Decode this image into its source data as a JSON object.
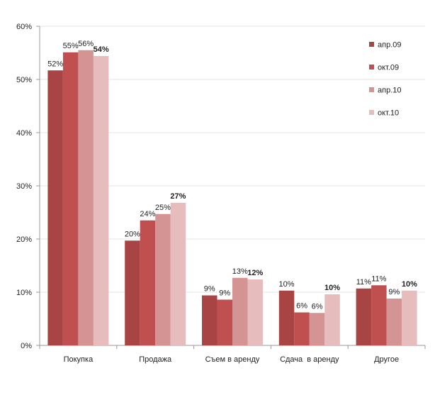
{
  "chart_data": {
    "type": "bar",
    "title": "",
    "xlabel": "",
    "ylabel": "",
    "ylim": [
      0,
      60
    ],
    "yticks": [
      "0%",
      "10%",
      "20%",
      "30%",
      "40%",
      "50%",
      "60%"
    ],
    "categories": [
      "Покупка",
      "Продажа",
      "Съем в аренду",
      "Сдача  в аренду",
      "Другое"
    ],
    "series": [
      {
        "name": "апр.09",
        "color": "#a94444",
        "values": [
          51.7,
          19.7,
          9.4,
          10.3,
          10.7
        ],
        "labels": [
          "52%",
          "20%",
          "9%",
          "10%",
          "11%"
        ]
      },
      {
        "name": "окт.09",
        "color": "#c04f4f",
        "values": [
          55.1,
          23.5,
          8.6,
          6.2,
          11.3
        ],
        "labels": [
          "55%",
          "24%",
          "9%",
          "6%",
          "11%"
        ]
      },
      {
        "name": "апр.10",
        "color": "#d49494",
        "values": [
          55.5,
          24.7,
          12.7,
          6.1,
          8.8
        ],
        "labels": [
          "56%",
          "25%",
          "13%",
          "6%",
          "9%"
        ]
      },
      {
        "name": "окт.10",
        "color": "#e6bcbc",
        "values": [
          54.4,
          26.8,
          12.4,
          9.6,
          10.3
        ],
        "labels": [
          "54%",
          "27%",
          "12%",
          "10%",
          "10%"
        ],
        "labels_bold": true
      }
    ],
    "grid": true,
    "legend_position": "top-right"
  }
}
